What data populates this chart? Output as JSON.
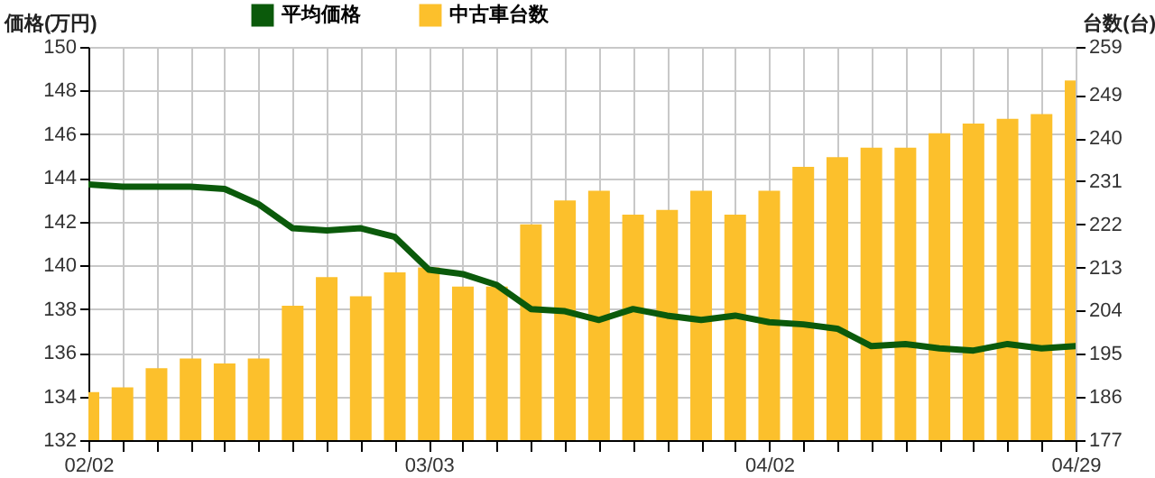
{
  "chart_data": {
    "type": "bar",
    "ylabel": "価格(万円)",
    "y2label": "台数(台)",
    "x": [
      "--02-02",
      "--02-05",
      "--02-08",
      "--02-11",
      "--02-14",
      "--02-17",
      "--02-20",
      "--02-23",
      "--02-26",
      "--02-29",
      "--03-03",
      "--03-06",
      "--03-09",
      "--03-12",
      "--03-15",
      "--03-18",
      "--03-21",
      "--03-24",
      "--03-27",
      "--03-30",
      "--04-02",
      "--04-05",
      "--04-08",
      "--04-11",
      "--04-14",
      "--04-17",
      "--04-20",
      "--04-23",
      "--04-26",
      "--04-29"
    ],
    "xlim": [
      "--02-02",
      "--04-29"
    ],
    "xticks": [
      {
        "value": "--02-02",
        "label": "02/02"
      },
      {
        "value": "--02-05",
        "label": null
      },
      {
        "value": "--02-08",
        "label": null
      },
      {
        "value": "--02-11",
        "label": null
      },
      {
        "value": "--02-14",
        "label": null
      },
      {
        "value": "--02-17",
        "label": null
      },
      {
        "value": "--02-20",
        "label": null
      },
      {
        "value": "--02-23",
        "label": null
      },
      {
        "value": "--02-26",
        "label": null
      },
      {
        "value": "--02-29",
        "label": null
      },
      {
        "value": "--03-03",
        "label": "03/03"
      },
      {
        "value": "--03-06",
        "label": null
      },
      {
        "value": "--03-09",
        "label": null
      },
      {
        "value": "--03-12",
        "label": null
      },
      {
        "value": "--03-15",
        "label": null
      },
      {
        "value": "--03-18",
        "label": null
      },
      {
        "value": "--03-21",
        "label": null
      },
      {
        "value": "--03-24",
        "label": null
      },
      {
        "value": "--03-27",
        "label": null
      },
      {
        "value": "--03-30",
        "label": null
      },
      {
        "value": "--04-02",
        "label": "04/02"
      },
      {
        "value": "--04-05",
        "label": null
      },
      {
        "value": "--04-08",
        "label": null
      },
      {
        "value": "--04-11",
        "label": null
      },
      {
        "value": "--04-14",
        "label": null
      },
      {
        "value": "--04-17",
        "label": null
      },
      {
        "value": "--04-20",
        "label": null
      },
      {
        "value": "--04-23",
        "label": null
      },
      {
        "value": "--04-26",
        "label": null
      },
      {
        "value": "--04-29",
        "label": "04/29"
      }
    ],
    "ylim": [
      132,
      150
    ],
    "yticks": [
      132,
      134,
      136,
      138,
      140,
      142,
      144,
      146,
      148,
      150
    ],
    "y2lim": [
      177,
      259
    ],
    "y2ticks": [
      177,
      186,
      195,
      204,
      213,
      222,
      231,
      240,
      249,
      259
    ],
    "series": [
      {
        "name": "平均価格",
        "type": "line",
        "color": "#0b5a0b",
        "values": [
          143.7,
          143.6,
          143.6,
          143.6,
          143.5,
          142.8,
          141.7,
          141.6,
          141.7,
          141.3,
          139.8,
          139.6,
          139.1,
          138.0,
          137.9,
          137.5,
          138.0,
          137.7,
          137.5,
          137.7,
          137.4,
          137.3,
          137.1,
          136.3,
          136.4,
          136.2,
          136.1,
          136.4,
          136.2,
          136.3
        ]
      },
      {
        "name": "中古車台数",
        "axis": "y2",
        "color": "#fcc02c",
        "values": [
          187,
          188,
          192,
          194,
          193,
          194,
          205,
          211,
          207,
          212,
          213,
          209,
          209,
          222,
          227,
          229,
          224,
          225,
          229,
          224,
          229,
          234,
          236,
          238,
          238,
          241,
          243,
          244,
          245,
          252
        ]
      }
    ],
    "grid": true,
    "legend": "top left"
  }
}
